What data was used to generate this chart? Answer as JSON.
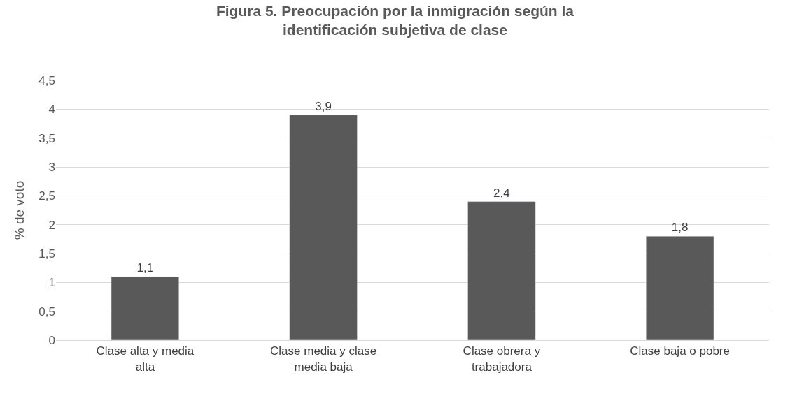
{
  "chart_data": {
    "type": "bar",
    "title": "Figura 5. Preocupación por la inmigración según la identificación subjetiva de clase",
    "ylabel": "% de voto",
    "categories": [
      "Clase alta y media alta",
      "Clase media y clase media baja",
      "Clase obrera y trabajadora",
      "Clase baja o pobre"
    ],
    "values": [
      1.1,
      3.9,
      2.4,
      1.8
    ],
    "value_labels": [
      "1,1",
      "3,9",
      "2,4",
      "1,8"
    ],
    "color": "#595959",
    "ylim": [
      0,
      4.5
    ],
    "yticks": [
      0,
      {
        "value": 0.5,
        "label": "0,5"
      },
      1,
      {
        "value": 1.5,
        "label": "1,5"
      },
      2,
      {
        "value": 2.5,
        "label": "2,5"
      },
      3,
      {
        "value": 3.5,
        "label": "3,5"
      },
      4,
      {
        "value": 4.5,
        "label": "4,5"
      }
    ],
    "grid": "y",
    "legend": false
  }
}
